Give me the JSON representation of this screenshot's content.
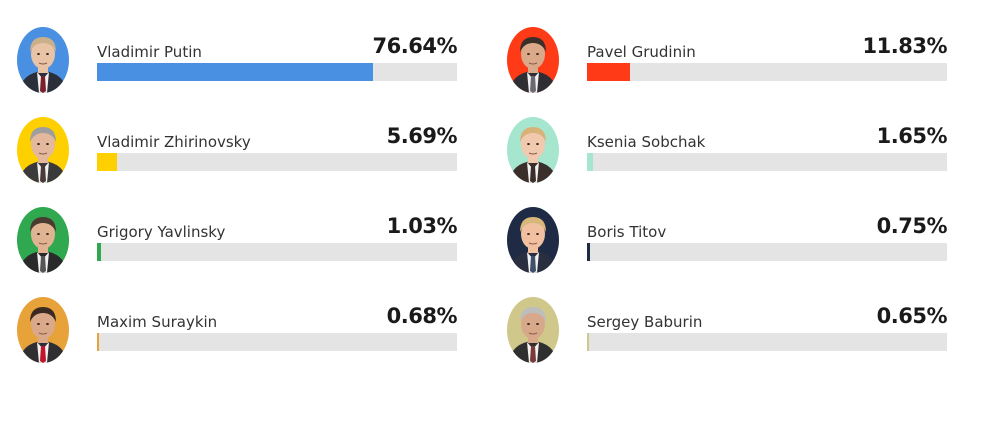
{
  "chart_data": {
    "type": "bar",
    "xlim": [
      0,
      100
    ],
    "candidates": [
      {
        "name": "Vladimir Putin",
        "value": 76.64,
        "label": "76.64%",
        "color": "#4a90e2",
        "skin": "#e8c3a6",
        "hair": "#c9b08a",
        "suit": "#2b2f3a",
        "tie": "#7a1f2b"
      },
      {
        "name": "Pavel Grudinin",
        "value": 11.83,
        "label": "11.83%",
        "color": "#ff3b17",
        "skin": "#d9a98a",
        "hair": "#3b2f2a",
        "suit": "#2f2f33",
        "tie": "#6a6a72"
      },
      {
        "name": "Vladimir Zhirinovsky",
        "value": 5.69,
        "label": "5.69%",
        "color": "#ffd000",
        "skin": "#e3b89c",
        "hair": "#9e9e9e",
        "suit": "#3a3a3a",
        "tie": "#4a3a3a"
      },
      {
        "name": "Ksenia Sobchak",
        "value": 1.65,
        "label": "1.65%",
        "color": "#a6e6cf",
        "skin": "#f0c9ae",
        "hair": "#d9b27a",
        "suit": "#3a2f2a",
        "tie": "#3a2f2a"
      },
      {
        "name": "Grigory Yavlinsky",
        "value": 1.03,
        "label": "1.03%",
        "color": "#2fa84f",
        "skin": "#e0b493",
        "hair": "#4a3a2f",
        "suit": "#2a2a2a",
        "tie": "#555555"
      },
      {
        "name": "Boris Titov",
        "value": 0.75,
        "label": "0.75%",
        "color": "#1f2a44",
        "skin": "#f0c0a0",
        "hair": "#d8b77a",
        "suit": "#2a2f40",
        "tie": "#40506a"
      },
      {
        "name": "Maxim Suraykin",
        "value": 0.68,
        "label": "0.68%",
        "color": "#e8a23a",
        "skin": "#d9a98a",
        "hair": "#3a2a22",
        "suit": "#2f2f33",
        "tie": "#c0152a"
      },
      {
        "name": "Sergey Baburin",
        "value": 0.65,
        "label": "0.65%",
        "color": "#cfc88a",
        "skin": "#d8a88a",
        "hair": "#bdbdbd",
        "suit": "#2f2f2f",
        "tie": "#7a3a3a"
      }
    ]
  }
}
